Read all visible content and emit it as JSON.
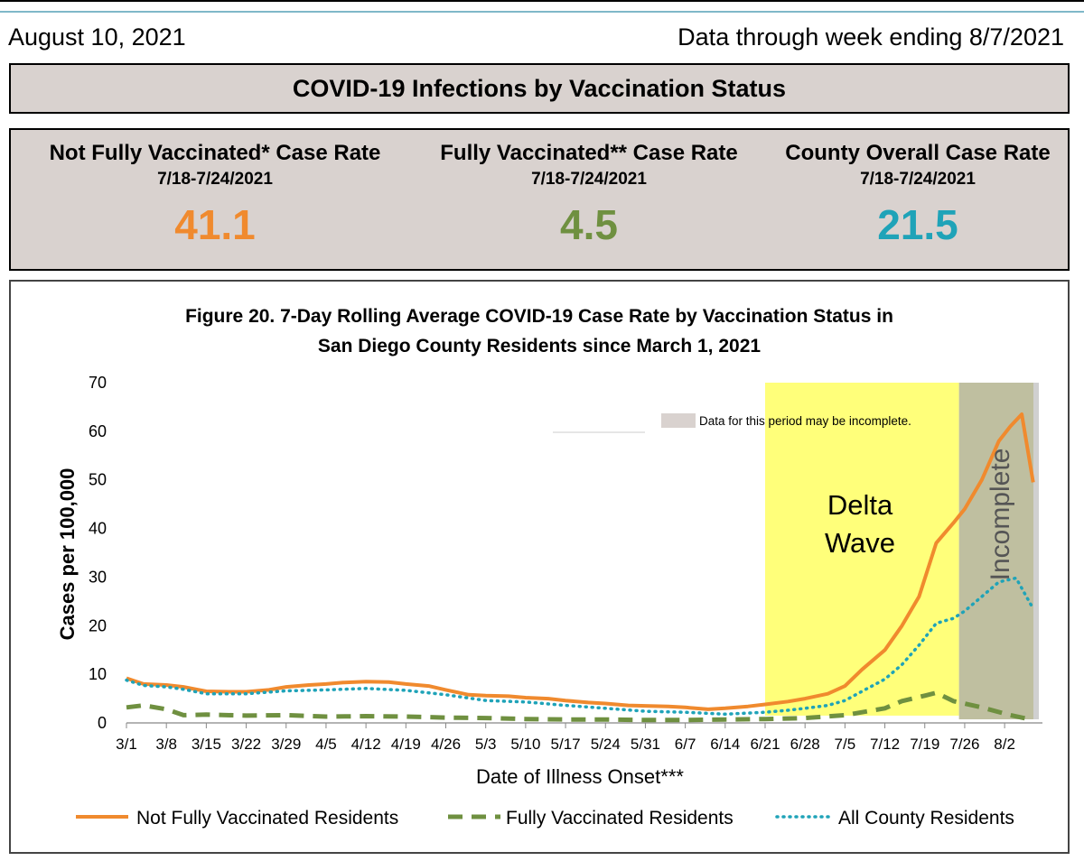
{
  "header": {
    "date": "August 10, 2021",
    "data_through": "Data through week ending 8/7/2021",
    "banner_title": "COVID-19 Infections by Vaccination Status"
  },
  "stats": [
    {
      "label": "Not Fully Vaccinated* Case Rate",
      "range": "7/18-7/24/2021",
      "value": "41.1",
      "color": "#f08a2e"
    },
    {
      "label": "Fully Vaccinated** Case Rate",
      "range": "7/18-7/24/2021",
      "value": "4.5",
      "color": "#6f9040"
    },
    {
      "label": "County Overall Case Rate",
      "range": "7/18-7/24/2021",
      "value": "21.5",
      "color": "#1fa3b8"
    }
  ],
  "chart_data": {
    "type": "line",
    "title_line1": "Figure 20. 7-Day Rolling Average COVID-19 Case Rate by Vaccination Status in",
    "title_line2": "San Diego County Residents since March 1, 2021",
    "xlabel": "Date of Illness Onset***",
    "ylabel": "Cases per 100,000",
    "ylim": [
      0,
      70
    ],
    "yticks": [
      "0",
      "10",
      "20",
      "30",
      "40",
      "50",
      "60",
      "70"
    ],
    "xticks": [
      "3/1",
      "3/8",
      "3/15",
      "3/22",
      "3/29",
      "4/5",
      "4/12",
      "4/19",
      "4/26",
      "5/3",
      "5/10",
      "5/17",
      "5/24",
      "5/31",
      "6/7",
      "6/14",
      "6/21",
      "6/28",
      "7/5",
      "7/12",
      "7/19",
      "7/26",
      "8/2"
    ],
    "x_day_index": [
      0,
      7,
      14,
      21,
      28,
      35,
      42,
      49,
      56,
      63,
      70,
      77,
      84,
      91,
      98,
      105,
      112,
      119,
      126,
      133,
      140,
      147,
      154
    ],
    "x_range": [
      0,
      160
    ],
    "grid": false,
    "legend_position": "bottom",
    "annotations": {
      "delta_line1": "Delta",
      "delta_line2": "Wave",
      "incomplete": "Incomplete",
      "incomplete_note": "Data for this period may be incomplete.",
      "delta_start_day": 112,
      "incomplete_start_day": 146,
      "delta_color": "#ffff7a",
      "incomplete_color": "#b8b896"
    },
    "series": [
      {
        "name": "Not Fully Vaccinated Residents",
        "color": "#f08a2e",
        "style": "solid",
        "x": [
          0,
          3,
          7,
          10,
          14,
          18,
          21,
          25,
          28,
          32,
          35,
          38,
          42,
          46,
          49,
          53,
          56,
          60,
          63,
          67,
          70,
          74,
          77,
          81,
          84,
          88,
          91,
          95,
          98,
          102,
          105,
          109,
          112,
          116,
          119,
          123,
          126,
          129,
          133,
          136,
          139,
          142,
          145,
          147,
          150,
          153,
          155,
          157,
          159
        ],
        "y": [
          9.2,
          8.0,
          7.8,
          7.4,
          6.5,
          6.4,
          6.4,
          6.8,
          7.4,
          7.8,
          8.0,
          8.3,
          8.5,
          8.4,
          8.0,
          7.6,
          6.8,
          5.8,
          5.6,
          5.5,
          5.2,
          5.0,
          4.6,
          4.2,
          4.0,
          3.6,
          3.5,
          3.4,
          3.2,
          2.8,
          3.0,
          3.4,
          3.8,
          4.4,
          5.0,
          6.0,
          7.6,
          11.0,
          15.0,
          20.0,
          26.0,
          37.0,
          41.1,
          44.0,
          50.0,
          58.0,
          61.0,
          63.5,
          49.5
        ]
      },
      {
        "name": "Fully Vaccinated Residents",
        "color": "#6f9040",
        "style": "dashed",
        "x": [
          0,
          3,
          7,
          10,
          14,
          21,
          28,
          35,
          42,
          49,
          56,
          63,
          70,
          77,
          84,
          91,
          98,
          105,
          112,
          119,
          126,
          133,
          136,
          140,
          142,
          145,
          150,
          155,
          159
        ],
        "y": [
          3.2,
          3.6,
          2.8,
          1.6,
          1.7,
          1.5,
          1.6,
          1.3,
          1.4,
          1.3,
          1.1,
          1.0,
          0.8,
          0.7,
          0.7,
          0.6,
          0.6,
          0.7,
          0.8,
          1.0,
          1.6,
          3.0,
          4.5,
          5.6,
          6.2,
          4.5,
          3.2,
          1.6,
          0.6
        ]
      },
      {
        "name": "All County Residents",
        "color": "#1fa3b8",
        "style": "dotted",
        "x": [
          0,
          3,
          7,
          10,
          14,
          21,
          28,
          35,
          42,
          49,
          56,
          63,
          70,
          77,
          84,
          91,
          98,
          105,
          112,
          116,
          119,
          123,
          126,
          129,
          133,
          136,
          139,
          142,
          145,
          147,
          150,
          153,
          156,
          159
        ],
        "y": [
          8.8,
          7.7,
          7.4,
          6.9,
          6.0,
          6.0,
          6.6,
          6.8,
          7.1,
          6.7,
          5.8,
          4.6,
          4.3,
          3.6,
          3.0,
          2.4,
          2.2,
          1.8,
          2.2,
          2.6,
          3.0,
          3.6,
          4.6,
          6.5,
          9.0,
          12.0,
          16.0,
          20.5,
          21.5,
          23.0,
          26.0,
          29.0,
          29.8,
          23.5
        ]
      }
    ]
  }
}
